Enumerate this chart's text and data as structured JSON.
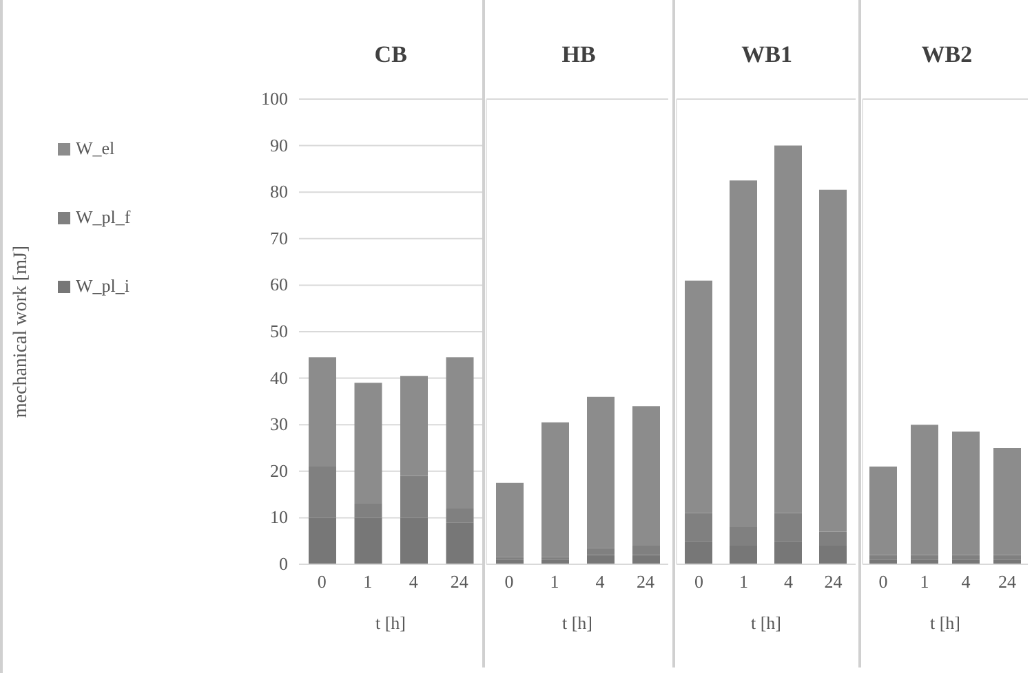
{
  "chart_data": [
    {
      "type": "bar",
      "title": "CB",
      "categories": [
        "0",
        "1",
        "4",
        "24"
      ],
      "xlabel": "t [h]",
      "ylabel": "mechanical work [mJ]",
      "stacked": true,
      "ylim": [
        0,
        100
      ],
      "yticks": [
        0,
        10,
        20,
        30,
        40,
        50,
        60,
        70,
        80,
        90,
        100
      ],
      "grid": "y",
      "legend": "left",
      "series": [
        {
          "name": "W_pl_i",
          "color": "#777777",
          "values": [
            10,
            10,
            10,
            9
          ]
        },
        {
          "name": "W_pl_f",
          "color": "#808080",
          "values": [
            11,
            3,
            9,
            3
          ]
        },
        {
          "name": "W_el",
          "color": "#8c8c8c",
          "values": [
            23.5,
            26,
            21.5,
            32.5
          ]
        }
      ]
    },
    {
      "type": "bar",
      "title": "HB",
      "categories": [
        "0",
        "1",
        "4",
        "24"
      ],
      "xlabel": "t [h]",
      "stacked": true,
      "ylim": [
        0,
        100
      ],
      "yticks": [
        0,
        10,
        20,
        30,
        40,
        50,
        60,
        70,
        80,
        90,
        100
      ],
      "grid": "y",
      "tick_labels": "x",
      "series": [
        {
          "color": "#777777",
          "values": [
            1,
            1,
            2,
            2
          ]
        },
        {
          "color": "#808080",
          "values": [
            0.5,
            0.5,
            1.5,
            2
          ]
        },
        {
          "color": "#8c8c8c",
          "values": [
            16,
            29,
            32.5,
            30
          ]
        }
      ]
    },
    {
      "type": "bar",
      "title": "WB1",
      "categories": [
        "0",
        "1",
        "4",
        "24"
      ],
      "xlabel": "t [h]",
      "stacked": true,
      "ylim": [
        0,
        100
      ],
      "yticks": [
        0,
        10,
        20,
        30,
        40,
        50,
        60,
        70,
        80,
        90,
        100
      ],
      "grid": "y",
      "tick_labels": "x",
      "series": [
        {
          "color": "#777777",
          "values": [
            5,
            4,
            5,
            4
          ]
        },
        {
          "color": "#808080",
          "values": [
            6,
            4,
            6,
            3
          ]
        },
        {
          "color": "#8c8c8c",
          "values": [
            50,
            74.5,
            79,
            73.5
          ]
        }
      ]
    },
    {
      "type": "bar",
      "title": "WB2",
      "categories": [
        "0",
        "1",
        "4",
        "24"
      ],
      "xlabel": "t [h]",
      "stacked": true,
      "ylim": [
        0,
        100
      ],
      "yticks": [
        0,
        10,
        20,
        30,
        40,
        50,
        60,
        70,
        80,
        90,
        100
      ],
      "grid": "y",
      "tick_labels": "x",
      "series": [
        {
          "color": "#777777",
          "values": [
            1,
            1,
            1,
            1
          ]
        },
        {
          "color": "#808080",
          "values": [
            1,
            1,
            1,
            1
          ]
        },
        {
          "color": "#8c8c8c",
          "values": [
            19,
            28,
            26.5,
            23
          ]
        }
      ]
    }
  ]
}
